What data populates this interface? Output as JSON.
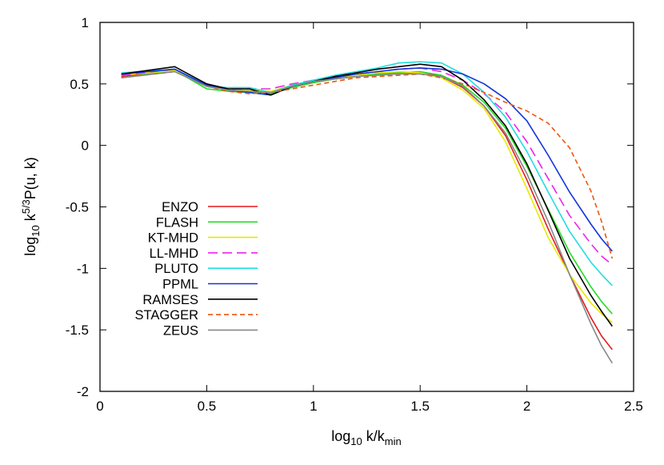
{
  "chart_data": {
    "type": "line",
    "title": "",
    "xlabel": {
      "prefix": "log",
      "prefix_sub": "10",
      "main": " k/k",
      "main_sub": "min"
    },
    "ylabel": {
      "prefix": "log",
      "prefix_sub": "10",
      "main": " k",
      "main_sup": "5/3",
      "tail": "P(u, k)"
    },
    "xlim": [
      0,
      2.5
    ],
    "ylim": [
      -2,
      1
    ],
    "xticks": [
      0,
      0.5,
      1,
      1.5,
      2,
      2.5
    ],
    "xtick_labels": [
      "0",
      "0.5",
      "1",
      "1.5",
      "2",
      "2.5"
    ],
    "yticks": [
      -2,
      -1.5,
      -1,
      -0.5,
      0,
      0.5,
      1
    ],
    "ytick_labels": [
      "-2",
      "-1.5",
      "-1",
      "-0.5",
      "0",
      "0.5",
      "1"
    ],
    "grid": false,
    "legend_position": "bottom-left",
    "series": [
      {
        "name": "ENZO",
        "color": "#e41a1c",
        "dash": "solid",
        "points": [
          [
            0.1,
            0.56
          ],
          [
            0.35,
            0.61
          ],
          [
            0.5,
            0.48
          ],
          [
            0.6,
            0.45
          ],
          [
            0.7,
            0.44
          ],
          [
            0.8,
            0.43
          ],
          [
            0.9,
            0.48
          ],
          [
            1.0,
            0.52
          ],
          [
            1.1,
            0.54
          ],
          [
            1.2,
            0.56
          ],
          [
            1.3,
            0.58
          ],
          [
            1.4,
            0.59
          ],
          [
            1.5,
            0.59
          ],
          [
            1.6,
            0.56
          ],
          [
            1.7,
            0.47
          ],
          [
            1.8,
            0.32
          ],
          [
            1.9,
            0.08
          ],
          [
            2.0,
            -0.28
          ],
          [
            2.1,
            -0.68
          ],
          [
            2.2,
            -1.05
          ],
          [
            2.3,
            -1.4
          ],
          [
            2.35,
            -1.55
          ],
          [
            2.4,
            -1.66
          ]
        ]
      },
      {
        "name": "FLASH",
        "color": "#22dd22",
        "dash": "solid",
        "points": [
          [
            0.1,
            0.55
          ],
          [
            0.35,
            0.61
          ],
          [
            0.5,
            0.46
          ],
          [
            0.6,
            0.44
          ],
          [
            0.7,
            0.43
          ],
          [
            0.8,
            0.42
          ],
          [
            0.9,
            0.47
          ],
          [
            1.0,
            0.51
          ],
          [
            1.1,
            0.54
          ],
          [
            1.2,
            0.56
          ],
          [
            1.3,
            0.58
          ],
          [
            1.4,
            0.59
          ],
          [
            1.5,
            0.6
          ],
          [
            1.6,
            0.57
          ],
          [
            1.7,
            0.49
          ],
          [
            1.8,
            0.35
          ],
          [
            1.9,
            0.14
          ],
          [
            2.0,
            -0.17
          ],
          [
            2.1,
            -0.52
          ],
          [
            2.2,
            -0.87
          ],
          [
            2.3,
            -1.15
          ],
          [
            2.35,
            -1.27
          ],
          [
            2.4,
            -1.37
          ]
        ]
      },
      {
        "name": "KT-MHD",
        "color": "#e8e800",
        "dash": "solid",
        "points": [
          [
            0.1,
            0.57
          ],
          [
            0.35,
            0.61
          ],
          [
            0.5,
            0.49
          ],
          [
            0.6,
            0.46
          ],
          [
            0.7,
            0.45
          ],
          [
            0.8,
            0.44
          ],
          [
            0.9,
            0.49
          ],
          [
            1.0,
            0.53
          ],
          [
            1.1,
            0.55
          ],
          [
            1.2,
            0.57
          ],
          [
            1.3,
            0.59
          ],
          [
            1.4,
            0.6
          ],
          [
            1.5,
            0.59
          ],
          [
            1.6,
            0.55
          ],
          [
            1.7,
            0.45
          ],
          [
            1.8,
            0.3
          ],
          [
            1.9,
            0.03
          ],
          [
            2.0,
            -0.35
          ],
          [
            2.1,
            -0.75
          ],
          [
            2.2,
            -1.05
          ],
          [
            2.3,
            -1.28
          ],
          [
            2.35,
            -1.37
          ],
          [
            2.4,
            -1.44
          ]
        ]
      },
      {
        "name": "LL-MHD",
        "color": "#ee22ee",
        "dash": "12,6",
        "points": [
          [
            0.1,
            0.57
          ],
          [
            0.35,
            0.62
          ],
          [
            0.5,
            0.49
          ],
          [
            0.6,
            0.46
          ],
          [
            0.7,
            0.46
          ],
          [
            0.8,
            0.46
          ],
          [
            0.9,
            0.5
          ],
          [
            1.0,
            0.53
          ],
          [
            1.1,
            0.56
          ],
          [
            1.2,
            0.58
          ],
          [
            1.3,
            0.6
          ],
          [
            1.4,
            0.62
          ],
          [
            1.5,
            0.63
          ],
          [
            1.6,
            0.6
          ],
          [
            1.7,
            0.53
          ],
          [
            1.8,
            0.42
          ],
          [
            1.9,
            0.27
          ],
          [
            2.0,
            0.03
          ],
          [
            2.1,
            -0.27
          ],
          [
            2.2,
            -0.57
          ],
          [
            2.3,
            -0.8
          ],
          [
            2.35,
            -0.9
          ],
          [
            2.4,
            -0.97
          ]
        ]
      },
      {
        "name": "PLUTO",
        "color": "#22dddd",
        "dash": "solid",
        "points": [
          [
            0.1,
            0.59
          ],
          [
            0.35,
            0.62
          ],
          [
            0.5,
            0.48
          ],
          [
            0.6,
            0.47
          ],
          [
            0.7,
            0.47
          ],
          [
            0.8,
            0.43
          ],
          [
            0.9,
            0.49
          ],
          [
            1.0,
            0.53
          ],
          [
            1.1,
            0.57
          ],
          [
            1.2,
            0.6
          ],
          [
            1.3,
            0.63
          ],
          [
            1.4,
            0.67
          ],
          [
            1.5,
            0.68
          ],
          [
            1.6,
            0.67
          ],
          [
            1.7,
            0.58
          ],
          [
            1.8,
            0.43
          ],
          [
            1.9,
            0.23
          ],
          [
            2.0,
            -0.05
          ],
          [
            2.1,
            -0.38
          ],
          [
            2.2,
            -0.7
          ],
          [
            2.3,
            -0.95
          ],
          [
            2.35,
            -1.05
          ],
          [
            2.4,
            -1.14
          ]
        ]
      },
      {
        "name": "PPML",
        "color": "#1133dd",
        "dash": "solid",
        "points": [
          [
            0.1,
            0.58
          ],
          [
            0.35,
            0.62
          ],
          [
            0.5,
            0.49
          ],
          [
            0.6,
            0.45
          ],
          [
            0.7,
            0.43
          ],
          [
            0.8,
            0.41
          ],
          [
            0.9,
            0.48
          ],
          [
            1.0,
            0.52
          ],
          [
            1.1,
            0.55
          ],
          [
            1.2,
            0.58
          ],
          [
            1.3,
            0.6
          ],
          [
            1.4,
            0.62
          ],
          [
            1.5,
            0.63
          ],
          [
            1.6,
            0.62
          ],
          [
            1.7,
            0.58
          ],
          [
            1.8,
            0.5
          ],
          [
            1.9,
            0.38
          ],
          [
            2.0,
            0.2
          ],
          [
            2.1,
            -0.08
          ],
          [
            2.2,
            -0.38
          ],
          [
            2.3,
            -0.64
          ],
          [
            2.35,
            -0.76
          ],
          [
            2.4,
            -0.86
          ]
        ]
      },
      {
        "name": "RAMSES",
        "color": "#000000",
        "dash": "solid",
        "points": [
          [
            0.1,
            0.58
          ],
          [
            0.35,
            0.64
          ],
          [
            0.5,
            0.5
          ],
          [
            0.6,
            0.46
          ],
          [
            0.7,
            0.46
          ],
          [
            0.8,
            0.41
          ],
          [
            0.9,
            0.48
          ],
          [
            1.0,
            0.52
          ],
          [
            1.1,
            0.56
          ],
          [
            1.2,
            0.59
          ],
          [
            1.3,
            0.62
          ],
          [
            1.4,
            0.64
          ],
          [
            1.5,
            0.66
          ],
          [
            1.6,
            0.64
          ],
          [
            1.7,
            0.53
          ],
          [
            1.8,
            0.37
          ],
          [
            1.9,
            0.16
          ],
          [
            2.0,
            -0.15
          ],
          [
            2.1,
            -0.53
          ],
          [
            2.2,
            -0.92
          ],
          [
            2.3,
            -1.22
          ],
          [
            2.35,
            -1.35
          ],
          [
            2.4,
            -1.47
          ]
        ]
      },
      {
        "name": "STAGGER",
        "color": "#ee5511",
        "dash": "6,4",
        "points": [
          [
            0.1,
            0.55
          ],
          [
            0.35,
            0.6
          ],
          [
            0.5,
            0.48
          ],
          [
            0.6,
            0.44
          ],
          [
            0.7,
            0.42
          ],
          [
            0.8,
            0.43
          ],
          [
            0.9,
            0.46
          ],
          [
            1.0,
            0.49
          ],
          [
            1.1,
            0.52
          ],
          [
            1.2,
            0.55
          ],
          [
            1.3,
            0.56
          ],
          [
            1.4,
            0.57
          ],
          [
            1.5,
            0.58
          ],
          [
            1.6,
            0.55
          ],
          [
            1.7,
            0.5
          ],
          [
            1.8,
            0.43
          ],
          [
            1.9,
            0.35
          ],
          [
            2.0,
            0.28
          ],
          [
            2.1,
            0.18
          ],
          [
            2.2,
            -0.02
          ],
          [
            2.3,
            -0.37
          ],
          [
            2.35,
            -0.62
          ],
          [
            2.4,
            -0.92
          ]
        ]
      },
      {
        "name": "ZEUS",
        "color": "#888888",
        "dash": "solid",
        "points": [
          [
            0.1,
            0.55
          ],
          [
            0.35,
            0.6
          ],
          [
            0.5,
            0.48
          ],
          [
            0.6,
            0.45
          ],
          [
            0.7,
            0.44
          ],
          [
            0.8,
            0.43
          ],
          [
            0.9,
            0.48
          ],
          [
            1.0,
            0.52
          ],
          [
            1.1,
            0.54
          ],
          [
            1.2,
            0.56
          ],
          [
            1.3,
            0.57
          ],
          [
            1.4,
            0.58
          ],
          [
            1.5,
            0.58
          ],
          [
            1.6,
            0.56
          ],
          [
            1.7,
            0.48
          ],
          [
            1.8,
            0.32
          ],
          [
            1.9,
            0.1
          ],
          [
            2.0,
            -0.23
          ],
          [
            2.1,
            -0.62
          ],
          [
            2.2,
            -1.05
          ],
          [
            2.3,
            -1.45
          ],
          [
            2.35,
            -1.63
          ],
          [
            2.4,
            -1.77
          ]
        ]
      }
    ]
  }
}
